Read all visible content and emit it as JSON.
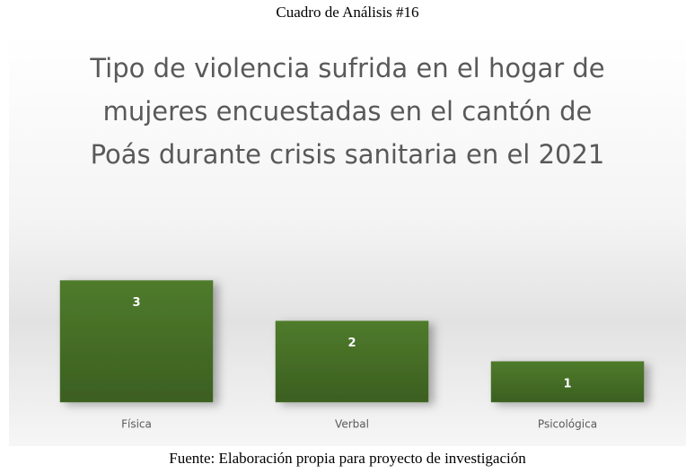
{
  "chart_data": {
    "type": "bar",
    "header": "Cuadro de Análisis #16",
    "title": "Tipo de violencia sufrida en el hogar de mujeres encuestadas en el cantón de Poás durante crisis sanitaria en el 2021",
    "categories": [
      "Física",
      "Verbal",
      "Psicológica"
    ],
    "values": [
      3,
      2,
      1
    ],
    "color": "#4a7129",
    "ylim": [
      0,
      3.5
    ],
    "source": "Fuente: Elaboración propia para proyecto de investigación"
  }
}
